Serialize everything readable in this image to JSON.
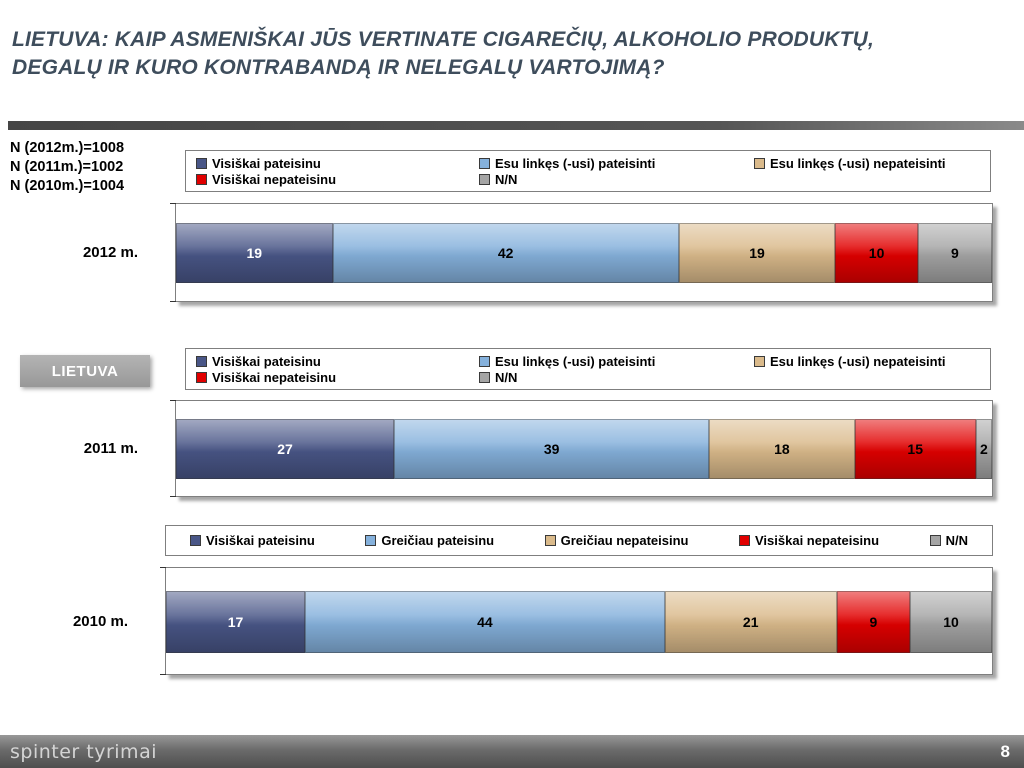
{
  "slide": {
    "title": "LIETUVA: KAIP ASMENIŠKAI JŪS VERTINATE CIGAREČIŲ, ALKOHOLIO PRODUKTŲ, DEGALŲ IR KURO KONTRABANDĄ IR NELEGALŲ VARTOJIMĄ?",
    "title_lines": [
      "LIETUVA: KAIP ASMENIŠKAI JŪS VERTINATE CIGAREČIŲ, ALKOHOLIO PRODUKTŲ,",
      "DEGALŲ IR KURO KONTRABANDĄ IR NELEGALŲ VARTOJIMĄ?"
    ],
    "sample_sizes": [
      "N (2012m.)=1008",
      "N (2011m.)=1002",
      "N (2010m.)=1004"
    ],
    "region_label": "LIETUVA",
    "footer": {
      "brand": "spinter tyrimai",
      "page_number": "8"
    }
  },
  "colors": {
    "title": "#3e4d5c",
    "series_dark_blue": "#495687",
    "series_light_blue": "#85b1dc",
    "series_tan": "#daba8b",
    "series_red": "#e10000",
    "series_gray": "#a5a5a5"
  },
  "chart_data": [
    {
      "type": "bar",
      "orientation": "horizontal",
      "stacked": true,
      "category": "2012 m.",
      "xlim": [
        0,
        100
      ],
      "legend_position": "top",
      "legend_layout": "two-row-grid",
      "legend_rows": [
        [
          "Visiškai pateisinu",
          "Esu linkęs (-usi) pateisinti",
          "Esu linkęs (-usi) nepateisinti"
        ],
        [
          "Visiškai nepateisinu",
          "N/N"
        ]
      ],
      "series": [
        {
          "name": "Visiškai pateisinu",
          "value": 19,
          "color": "#495687",
          "label_color": "#ffffff"
        },
        {
          "name": "Esu linkęs (-usi) pateisinti",
          "value": 42,
          "color": "#85b1dc",
          "label_color": "#000000"
        },
        {
          "name": "Esu linkęs (-usi) nepateisinti",
          "value": 19,
          "color": "#daba8b",
          "label_color": "#000000"
        },
        {
          "name": "Visiškai nepateisinu",
          "value": 10,
          "color": "#e10000",
          "label_color": "#000000"
        },
        {
          "name": "N/N",
          "value": 9,
          "color": "#a5a5a5",
          "label_color": "#000000"
        }
      ]
    },
    {
      "type": "bar",
      "orientation": "horizontal",
      "stacked": true,
      "category": "2011 m.",
      "xlim": [
        0,
        100
      ],
      "legend_position": "top",
      "legend_layout": "two-row-grid",
      "legend_rows": [
        [
          "Visiškai pateisinu",
          "Esu linkęs (-usi) pateisinti",
          "Esu linkęs (-usi) nepateisinti"
        ],
        [
          "Visiškai nepateisinu",
          "N/N"
        ]
      ],
      "series": [
        {
          "name": "Visiškai pateisinu",
          "value": 27,
          "color": "#495687",
          "label_color": "#ffffff"
        },
        {
          "name": "Esu linkęs (-usi) pateisinti",
          "value": 39,
          "color": "#85b1dc",
          "label_color": "#000000"
        },
        {
          "name": "Esu linkęs (-usi) nepateisinti",
          "value": 18,
          "color": "#daba8b",
          "label_color": "#000000"
        },
        {
          "name": "Visiškai nepateisinu",
          "value": 15,
          "color": "#e10000",
          "label_color": "#000000"
        },
        {
          "name": "N/N",
          "value": 2,
          "color": "#a5a5a5",
          "label_color": "#000000"
        }
      ]
    },
    {
      "type": "bar",
      "orientation": "horizontal",
      "stacked": true,
      "category": "2010 m.",
      "xlim": [
        0,
        100
      ],
      "legend_position": "top",
      "legend_layout": "single-row",
      "legend_rows": [
        [
          "Visiškai pateisinu",
          "Greičiau pateisinu",
          "Greičiau nepateisinu",
          "Visiškai nepateisinu",
          "N/N"
        ]
      ],
      "series": [
        {
          "name": "Visiškai pateisinu",
          "value": 17,
          "color": "#495687",
          "label_color": "#ffffff"
        },
        {
          "name": "Greičiau pateisinu",
          "value": 44,
          "color": "#85b1dc",
          "label_color": "#000000"
        },
        {
          "name": "Greičiau nepateisinu",
          "value": 21,
          "color": "#daba8b",
          "label_color": "#000000"
        },
        {
          "name": "Visiškai nepateisinu",
          "value": 9,
          "color": "#e10000",
          "label_color": "#000000"
        },
        {
          "name": "N/N",
          "value": 10,
          "color": "#a5a5a5",
          "label_color": "#000000"
        }
      ]
    }
  ]
}
